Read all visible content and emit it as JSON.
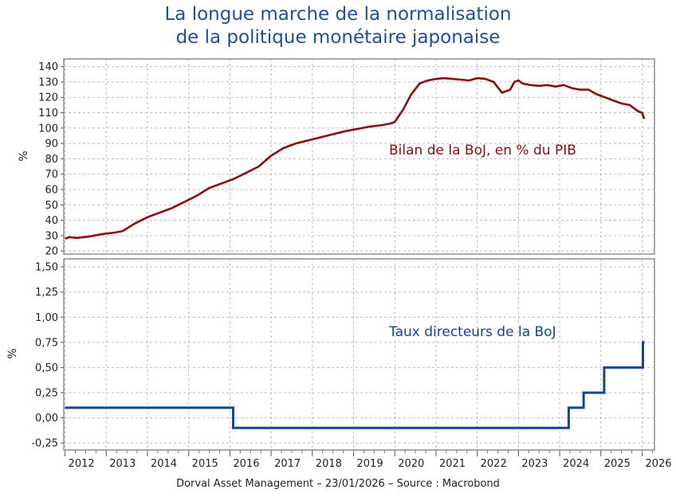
{
  "title_line1": "La longue marche de la normalisation",
  "title_line2": "de la politique monétaire japonaise",
  "footer": "Dorval Asset Management – 23/01/2026  –   Source : Macrobond",
  "colors": {
    "title": "#1f4e9c",
    "bs": "#8b0d0d",
    "rate": "#0d4797",
    "grid": "#bbbbbb"
  },
  "chart_data": [
    {
      "type": "line",
      "panel": "top",
      "ylabel": "%",
      "ylim": [
        18,
        145
      ],
      "yticks": [
        20,
        30,
        40,
        50,
        60,
        70,
        80,
        90,
        100,
        110,
        120,
        130,
        140
      ],
      "xlim": [
        2011.97,
        2026.3
      ],
      "annotation": "Bilan de la BoJ, en % du PIB",
      "series": [
        {
          "name": "Bilan de la BoJ, en % du PIB",
          "x": [
            2012.0,
            2012.1,
            2012.3,
            2012.6,
            2012.9,
            2013.2,
            2013.4,
            2013.7,
            2014.0,
            2014.3,
            2014.6,
            2014.9,
            2015.2,
            2015.5,
            2015.8,
            2016.1,
            2016.4,
            2016.7,
            2017.0,
            2017.3,
            2017.6,
            2017.9,
            2018.2,
            2018.5,
            2018.8,
            2019.1,
            2019.4,
            2019.7,
            2019.9,
            2020.0,
            2020.2,
            2020.4,
            2020.6,
            2020.8,
            2021.0,
            2021.2,
            2021.4,
            2021.6,
            2021.8,
            2022.0,
            2022.2,
            2022.4,
            2022.6,
            2022.7,
            2022.8,
            2022.9,
            2023.0,
            2023.1,
            2023.3,
            2023.5,
            2023.7,
            2023.9,
            2024.1,
            2024.3,
            2024.5,
            2024.7,
            2024.9,
            2025.1,
            2025.3,
            2025.5,
            2025.7,
            2025.9,
            2026.0,
            2026.05
          ],
          "values": [
            28,
            29,
            28.5,
            29.5,
            31,
            32,
            33,
            38,
            42,
            45,
            48,
            52,
            56,
            61,
            64,
            67,
            71,
            75,
            82,
            87,
            90,
            92,
            94,
            96,
            98,
            99.5,
            101,
            102,
            103,
            104,
            112,
            122,
            129,
            131,
            132,
            132.5,
            132,
            131.5,
            131,
            132.5,
            132,
            130,
            123,
            124,
            125,
            130,
            131,
            129,
            128,
            127.5,
            128,
            127,
            128,
            126,
            125,
            125,
            122,
            120,
            118,
            116,
            115,
            111,
            110,
            106
          ]
        }
      ]
    },
    {
      "type": "line",
      "panel": "bottom",
      "ylabel": "%",
      "ylim": [
        -0.32,
        1.58
      ],
      "yticks": [
        "1,50",
        "1,25",
        "1,00",
        "0,75",
        "0,50",
        "0,25",
        "0,00",
        "-0,25"
      ],
      "ytick_values": [
        1.5,
        1.25,
        1.0,
        0.75,
        0.5,
        0.25,
        0.0,
        -0.25
      ],
      "xlim": [
        2011.97,
        2026.3
      ],
      "annotation": "Taux directeurs de la BoJ",
      "series": [
        {
          "name": "Taux directeurs de la BoJ",
          "step": true,
          "x": [
            2012.0,
            2016.08,
            2024.22,
            2024.58,
            2025.08,
            2026.02,
            2026.06
          ],
          "values": [
            0.1,
            -0.1,
            0.1,
            0.25,
            0.5,
            0.75,
            0.75
          ]
        }
      ]
    }
  ],
  "xticks": [
    "2012",
    "2013",
    "2014",
    "2015",
    "2016",
    "2017",
    "2018",
    "2019",
    "2020",
    "2021",
    "2022",
    "2023",
    "2024",
    "2025",
    "2026"
  ],
  "xtick_values": [
    2012,
    2013,
    2014,
    2015,
    2016,
    2017,
    2018,
    2019,
    2020,
    2021,
    2022,
    2023,
    2024,
    2025,
    2026
  ]
}
